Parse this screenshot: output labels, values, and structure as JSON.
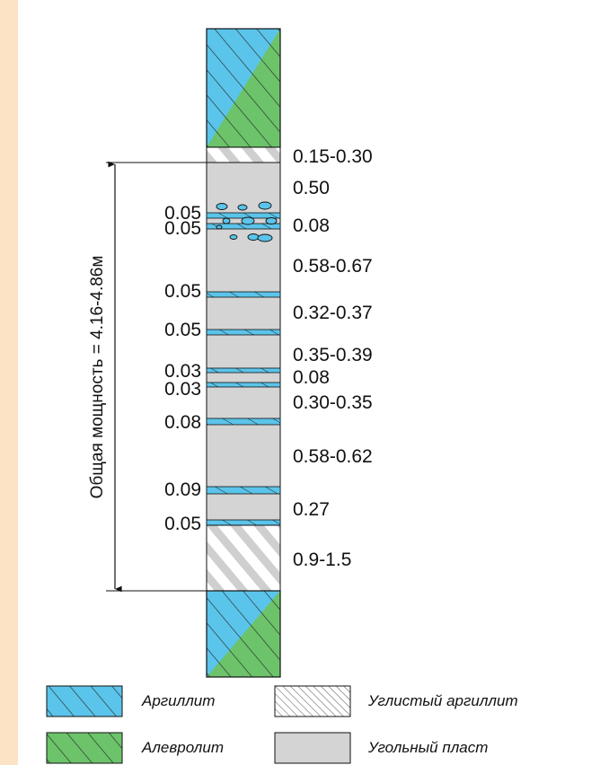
{
  "colors": {
    "argillite": "#5bc4ea",
    "aleurolite": "#6cc36a",
    "coal": "#d4d4d4",
    "carbonaceous_argillite": "#ffffff",
    "background": "#fde3c6"
  },
  "total_thickness": "Общая мощность = 4.16-4.86м",
  "right_labels": [
    "0.15-0.30",
    "0.50",
    "0.08",
    "0.58-0.67",
    "0.32-0.37",
    "0.35-0.39",
    "0.08",
    "0.30-0.35",
    "0.58-0.62",
    "0.27",
    "0.9-1.5"
  ],
  "left_labels": [
    "0.05",
    "0.05",
    "0.05",
    "0.05",
    "0.03",
    "0.03",
    "0.08",
    "0.09",
    "0.05"
  ],
  "legend": {
    "argillite": "Аргиллит",
    "carbonaceous_argillite": "Углистый аргиллит",
    "aleurolite": "Алевролит",
    "coal": "Угольный пласт"
  }
}
